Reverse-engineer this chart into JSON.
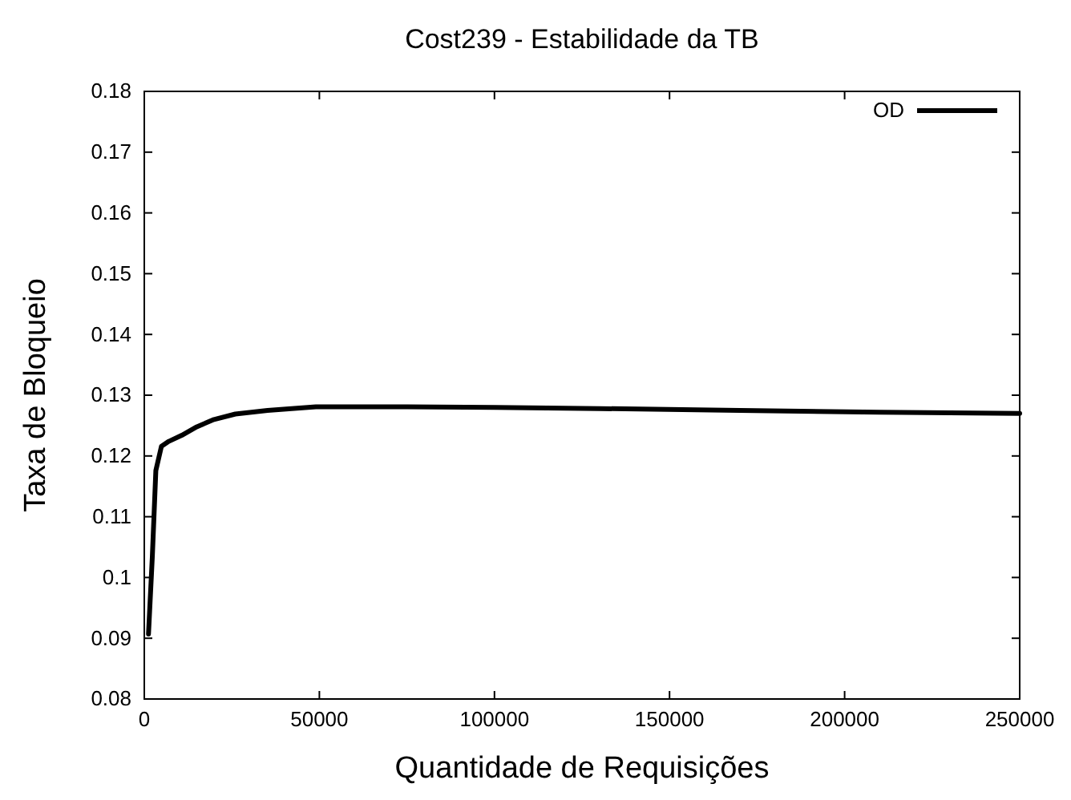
{
  "chart_data": {
    "type": "line",
    "title": "Cost239 - Estabilidade da TB",
    "xlabel": "Quantidade de Requisições",
    "ylabel": "Taxa de Bloqueio",
    "xlim": [
      0,
      250000
    ],
    "xticks": [
      0,
      50000,
      100000,
      150000,
      200000,
      250000
    ],
    "ylim": [
      0.08,
      0.18
    ],
    "yticks": [
      0.08,
      0.09,
      0.1,
      0.11,
      0.12,
      0.13,
      0.14,
      0.15,
      0.16,
      0.17,
      0.18
    ],
    "legend": "top right",
    "grid": false,
    "line_style": "solid",
    "marker": "none",
    "series": [
      {
        "name": "OD",
        "color": "#000000",
        "x": [
          1200,
          2300,
          3300,
          4900,
          7000,
          10700,
          15000,
          19900,
          26000,
          35200,
          49000,
          75000,
          100000,
          130000,
          170000,
          210000,
          250000
        ],
        "values": [
          0.0907,
          0.1035,
          0.1176,
          0.1216,
          0.1224,
          0.1234,
          0.1248,
          0.126,
          0.1269,
          0.1275,
          0.1281,
          0.1281,
          0.128,
          0.1278,
          0.1275,
          0.1272,
          0.127
        ]
      }
    ]
  }
}
